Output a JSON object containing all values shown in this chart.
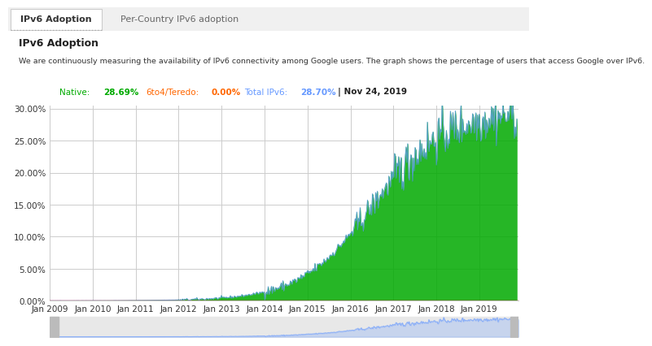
{
  "title": "IPv6 Adoption",
  "subtitle": "We are continuously measuring the availability of IPv6 connectivity among Google users. The graph shows the percentage of users that access Google over IPv6.",
  "tab1": "IPv6 Adoption",
  "tab2": "Per-Country IPv6 adoption",
  "native_color": "#00aa00",
  "teredo_color": "#ff6600",
  "total_color": "#6699ff",
  "legend_native_label": "Native:",
  "legend_native_value": "28.69%",
  "legend_teredo_label": "6to4/Teredo:",
  "legend_teredo_value": "0.00%",
  "legend_total_label": "Total IPv6:",
  "legend_total_value": "28.70%",
  "legend_date": "| Nov 24, 2019",
  "y_min": 0.0,
  "y_max": 0.3,
  "y_ticks": [
    0.0,
    0.05,
    0.1,
    0.15,
    0.2,
    0.25,
    0.3
  ],
  "background_color": "#ffffff",
  "grid_color": "#cccccc",
  "axis_line_color": "#cc0000"
}
